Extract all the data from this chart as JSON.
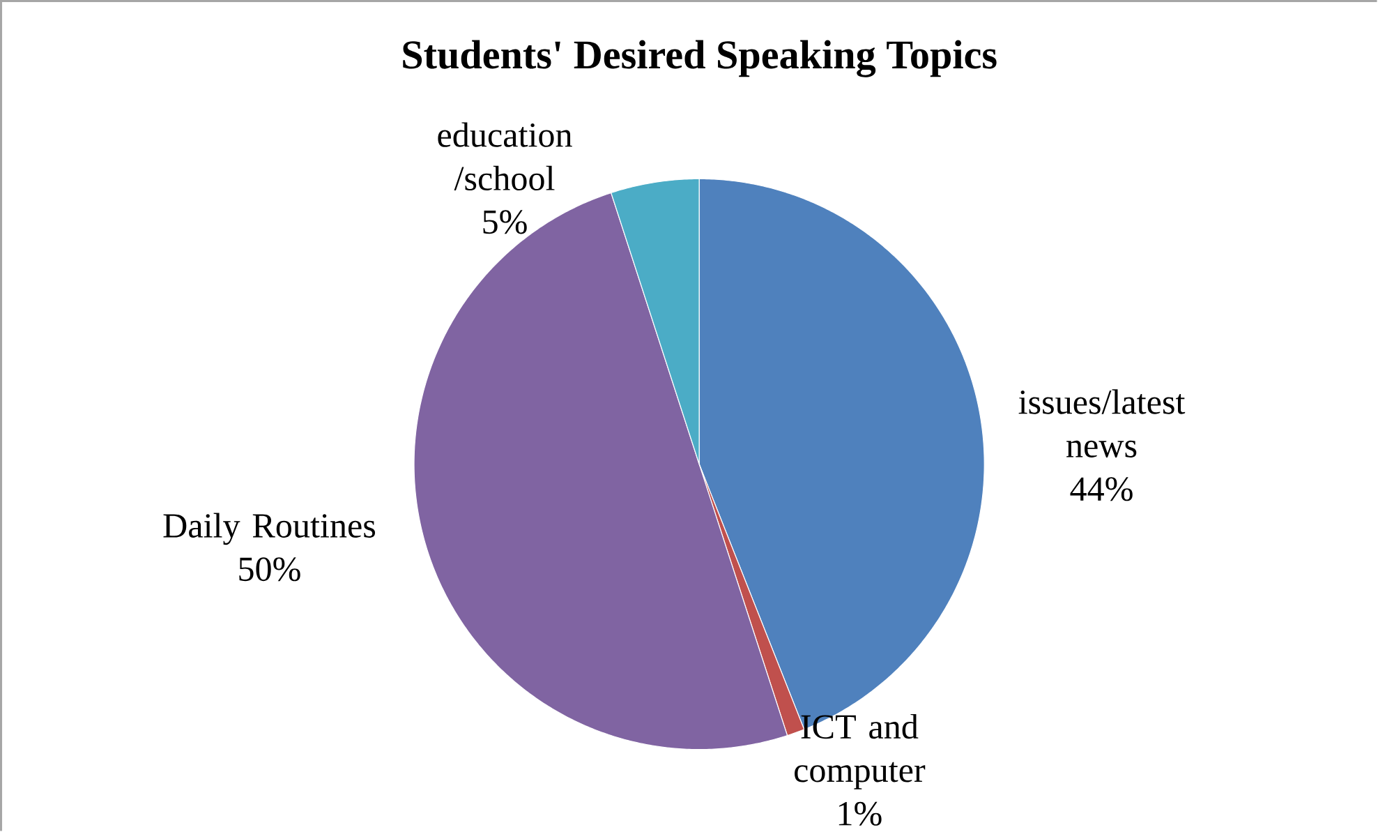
{
  "chart_data": {
    "type": "pie",
    "title": "Students' Desired Speaking Topics",
    "categories": [
      "issues/latest news",
      "ICT and computer",
      "Daily Routines",
      "education /school"
    ],
    "values": [
      44,
      1,
      50,
      5
    ],
    "value_labels": [
      "44%",
      "1%",
      "50%",
      "5%"
    ],
    "colors": [
      "#4f81bd",
      "#c0504d",
      "#8064a2",
      "#4bacc6"
    ]
  }
}
